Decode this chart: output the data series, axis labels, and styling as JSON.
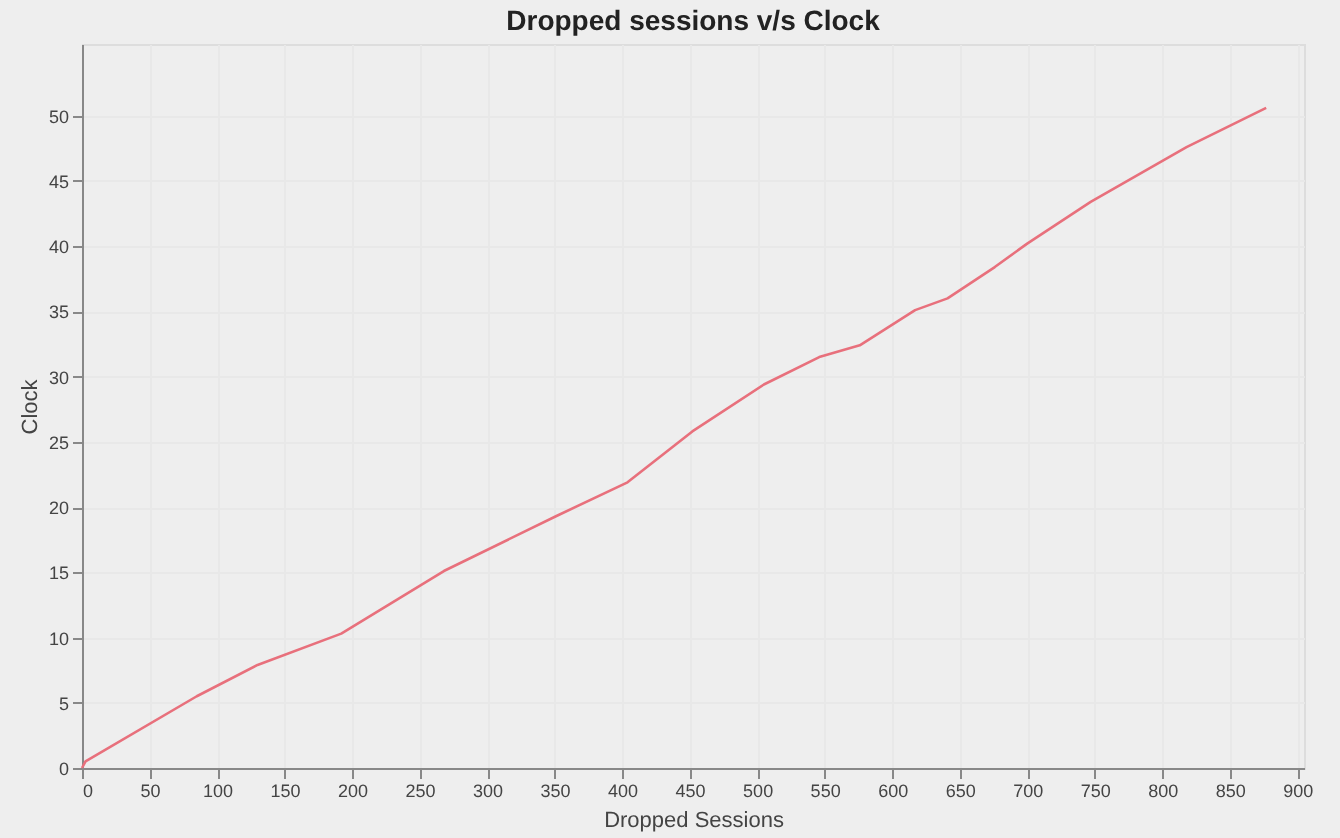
{
  "chart_data": {
    "type": "line",
    "title": "Dropped sessions v/s Clock",
    "xlabel": "Dropped Sessions",
    "ylabel": "Clock",
    "x": [
      0,
      2.6,
      85,
      130,
      192,
      268,
      351,
      404,
      452,
      505,
      546,
      576,
      617,
      641,
      676,
      700,
      747,
      818,
      877
    ],
    "series": [
      {
        "color": "#e8707c",
        "values": [
          0,
          0.5,
          5.5,
          7.9,
          10.3,
          15.1,
          19.3,
          21.9,
          25.8,
          29.4,
          31.5,
          32.4,
          35.1,
          36.0,
          38.4,
          40.2,
          43.4,
          47.6,
          50.6
        ]
      }
    ],
    "xlim": [
      0,
      905
    ],
    "ylim": [
      0,
      55.5
    ],
    "xticks": [
      0,
      50,
      100,
      150,
      200,
      250,
      300,
      350,
      400,
      450,
      500,
      550,
      600,
      650,
      700,
      750,
      800,
      850,
      900
    ],
    "yticks": [
      0,
      5,
      10,
      15,
      20,
      25,
      30,
      35,
      40,
      45,
      50
    ],
    "grid": true,
    "legend": false,
    "marker": "none",
    "line_style": "solid"
  }
}
